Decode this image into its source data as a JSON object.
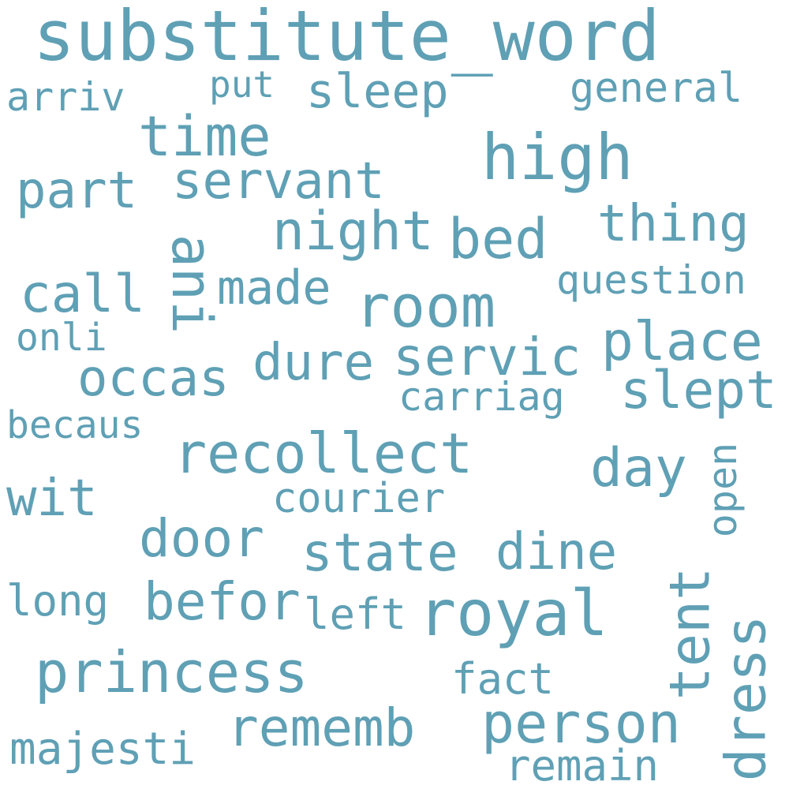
{
  "colors": {
    "word": "#5fa0b5",
    "background": "#ffffff"
  },
  "words": [
    {
      "id": "substitute_word",
      "text": "substitute_word"
    },
    {
      "id": "arriv",
      "text": "arriv"
    },
    {
      "id": "put",
      "text": "put"
    },
    {
      "id": "sleep",
      "text": "sleep"
    },
    {
      "id": "general",
      "text": "general"
    },
    {
      "id": "time",
      "text": "time"
    },
    {
      "id": "high",
      "text": "high"
    },
    {
      "id": "part",
      "text": "part"
    },
    {
      "id": "servant",
      "text": "servant"
    },
    {
      "id": "night",
      "text": "night"
    },
    {
      "id": "bed",
      "text": "bed"
    },
    {
      "id": "thing",
      "text": "thing"
    },
    {
      "id": "ani",
      "text": "ani"
    },
    {
      "id": "call",
      "text": "call"
    },
    {
      "id": "made",
      "text": "made"
    },
    {
      "id": "room",
      "text": "room"
    },
    {
      "id": "question",
      "text": "question"
    },
    {
      "id": "onli",
      "text": "onli"
    },
    {
      "id": "dure",
      "text": "dure"
    },
    {
      "id": "servic",
      "text": "servic"
    },
    {
      "id": "place",
      "text": "place"
    },
    {
      "id": "occas",
      "text": "occas"
    },
    {
      "id": "carriag",
      "text": "carriag"
    },
    {
      "id": "slept",
      "text": "slept"
    },
    {
      "id": "becaus",
      "text": "becaus"
    },
    {
      "id": "recollect",
      "text": "recollect"
    },
    {
      "id": "day",
      "text": "day"
    },
    {
      "id": "open",
      "text": "open"
    },
    {
      "id": "wit",
      "text": "wit"
    },
    {
      "id": "courier",
      "text": "courier"
    },
    {
      "id": "door",
      "text": "door"
    },
    {
      "id": "state",
      "text": "state"
    },
    {
      "id": "dine",
      "text": "dine"
    },
    {
      "id": "tent",
      "text": "tent"
    },
    {
      "id": "long",
      "text": "long"
    },
    {
      "id": "befor",
      "text": "befor"
    },
    {
      "id": "left",
      "text": "left"
    },
    {
      "id": "royal",
      "text": "royal"
    },
    {
      "id": "dress",
      "text": "dress"
    },
    {
      "id": "princess",
      "text": "princess"
    },
    {
      "id": "fact",
      "text": "fact"
    },
    {
      "id": "rememb",
      "text": "rememb"
    },
    {
      "id": "person",
      "text": "person"
    },
    {
      "id": "majesti",
      "text": "majesti"
    },
    {
      "id": "remain",
      "text": "remain"
    }
  ]
}
